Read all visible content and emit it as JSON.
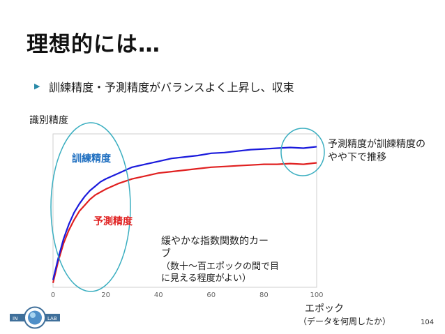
{
  "title": "理想的には…",
  "bullet": "訓練精度・予測精度がバランスよく上昇し、収束",
  "annotations": {
    "right": "予測精度が訓練精度のやや下で推移",
    "curve": "緩やかな指数関数的カーブ",
    "epoch_note": "（数十～百エポックの間で目に見える程度がよい）",
    "xlabel_sub": "（データを何周したか）"
  },
  "page_number": "104",
  "logo_text": {
    "left": "IN",
    "right": "LAB"
  },
  "colors": {
    "train": "#1a1adc",
    "val": "#e02020",
    "circle": "#3aaec0",
    "train_label": "#1f6fc0"
  },
  "chart_data": {
    "type": "line",
    "ylabel": "識別精度",
    "xlabel": "エポック",
    "x_ticks": [
      0,
      20,
      40,
      60,
      80,
      100
    ],
    "xlim": [
      0,
      100
    ],
    "ylim": [
      0,
      1
    ],
    "grid": false,
    "series": [
      {
        "name": "訓練精度",
        "color": "#1a1adc",
        "x": [
          0,
          2,
          4,
          6,
          8,
          10,
          12,
          14,
          16,
          18,
          20,
          25,
          30,
          35,
          40,
          45,
          50,
          55,
          60,
          65,
          70,
          75,
          80,
          85,
          90,
          95,
          100
        ],
        "y": [
          0.05,
          0.2,
          0.33,
          0.43,
          0.51,
          0.57,
          0.62,
          0.66,
          0.69,
          0.72,
          0.74,
          0.78,
          0.82,
          0.84,
          0.86,
          0.88,
          0.89,
          0.9,
          0.915,
          0.92,
          0.93,
          0.94,
          0.945,
          0.95,
          0.955,
          0.95,
          0.96
        ]
      },
      {
        "name": "予測精度",
        "color": "#e02020",
        "x": [
          0,
          2,
          4,
          6,
          8,
          10,
          12,
          14,
          16,
          18,
          20,
          25,
          30,
          35,
          40,
          45,
          50,
          55,
          60,
          65,
          70,
          75,
          80,
          85,
          90,
          95,
          100
        ],
        "y": [
          0.03,
          0.18,
          0.3,
          0.39,
          0.46,
          0.52,
          0.56,
          0.6,
          0.63,
          0.65,
          0.67,
          0.71,
          0.74,
          0.76,
          0.78,
          0.79,
          0.8,
          0.81,
          0.82,
          0.825,
          0.83,
          0.835,
          0.84,
          0.84,
          0.845,
          0.84,
          0.85
        ]
      }
    ]
  }
}
